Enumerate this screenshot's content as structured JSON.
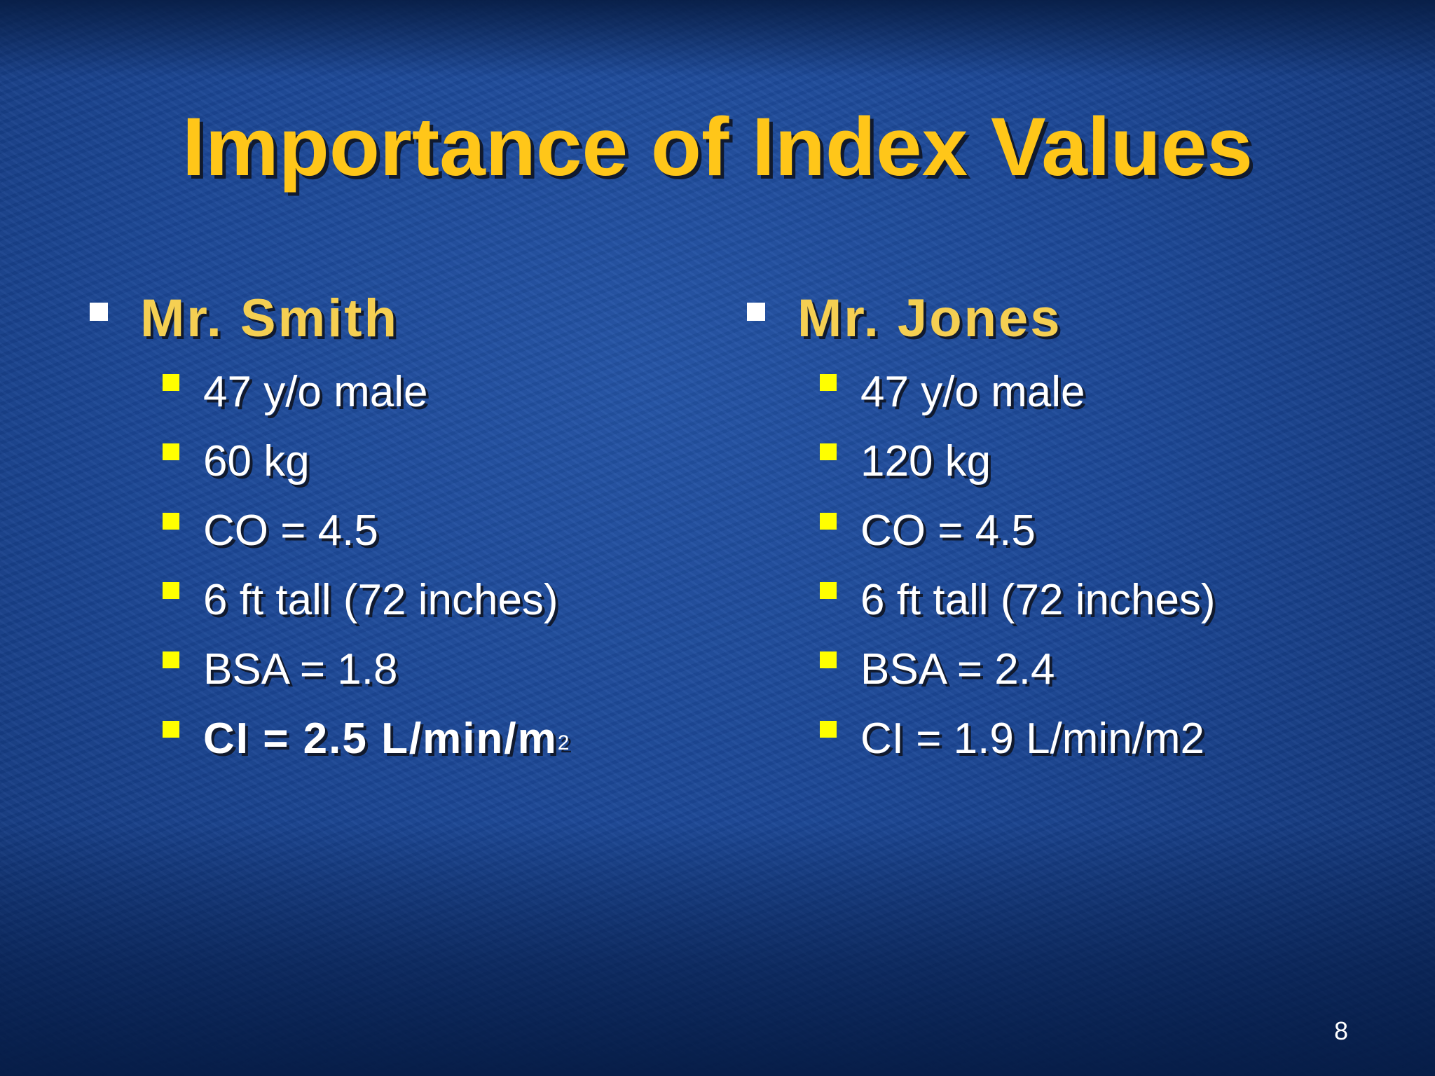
{
  "slide": {
    "title": "Importance of Index Values",
    "page_number": "8",
    "columns": [
      {
        "heading": "Mr. Smith",
        "items": [
          {
            "text": "47 y/o male"
          },
          {
            "text": "60 kg"
          },
          {
            "text": "CO = 4.5"
          },
          {
            "text": "6 ft tall (72 inches)"
          },
          {
            "text": "BSA = 1.8"
          },
          {
            "text": "CI = 2.5 L/min/m",
            "sup": "2"
          }
        ]
      },
      {
        "heading": "Mr. Jones",
        "items": [
          {
            "text": "47 y/o male"
          },
          {
            "text": "120 kg"
          },
          {
            "text": "CO = 4.5"
          },
          {
            "text": "6 ft tall (72 inches)"
          },
          {
            "text": "BSA = 2.4"
          },
          {
            "text": "CI = 1.9 L/min/m2"
          }
        ]
      }
    ],
    "colors": {
      "title": "#ffc619",
      "heading": "#f5cf52",
      "heading_bullet": "#ffffff",
      "item_bullet": "#ffff00",
      "item_text": "#ffffff",
      "background": "#1c4796"
    }
  }
}
